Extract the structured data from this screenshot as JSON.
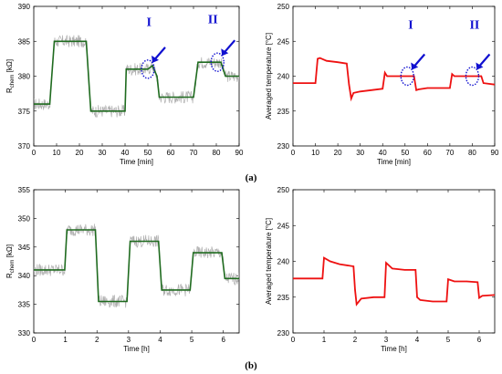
{
  "panel_labels": [
    "(a)",
    "(b)"
  ],
  "colors": {
    "resistance": "#1f6b1f",
    "temperature": "#ee1111",
    "noise": "#b0b0b0",
    "annotation": "#1010d0"
  },
  "chart_data": [
    {
      "id": "a-left",
      "type": "line",
      "title": "",
      "xlabel": "Time [min]",
      "ylabel": "R",
      "ylabel_sub": "chem",
      "ylabel_unit": " [kΩ]",
      "xlim": [
        0,
        90
      ],
      "ylim": [
        370,
        390
      ],
      "xticks": [
        0,
        10,
        20,
        30,
        40,
        50,
        60,
        70,
        80,
        90
      ],
      "yticks": [
        370,
        375,
        380,
        385,
        390
      ],
      "grid": false,
      "noise_band": 0.9,
      "series": [
        {
          "x": [
            0,
            7,
            9,
            23,
            25,
            32,
            34,
            40,
            40.5,
            50,
            52,
            54,
            55,
            62,
            64,
            70,
            72,
            82,
            84,
            90
          ],
          "y": [
            376,
            376,
            385,
            385,
            375,
            375,
            375,
            375,
            381,
            381,
            381.5,
            380,
            377,
            377,
            377,
            377,
            382,
            382,
            380,
            380
          ]
        }
      ],
      "annotations": [
        {
          "label": "I",
          "x": 50,
          "y": 381,
          "label_x": 50.5,
          "label_y": 387.2
        },
        {
          "label": "II",
          "x": 80.5,
          "y": 382,
          "label_x": 78.5,
          "label_y": 387.6
        }
      ]
    },
    {
      "id": "a-right",
      "type": "line",
      "title": "",
      "xlabel": "Time [min]",
      "ylabel": "Averaged temperature [°C]",
      "xlim": [
        0,
        90
      ],
      "ylim": [
        230,
        250
      ],
      "xticks": [
        0,
        10,
        20,
        30,
        40,
        50,
        60,
        70,
        80,
        90
      ],
      "yticks": [
        230,
        235,
        240,
        245,
        250
      ],
      "grid": false,
      "series": [
        {
          "x": [
            0,
            10,
            11,
            12,
            15,
            20,
            24,
            25,
            26,
            27,
            30,
            35,
            40,
            41,
            42,
            50,
            54,
            55,
            56,
            60,
            70,
            71,
            72,
            80,
            84,
            85,
            90
          ],
          "y": [
            239,
            239,
            242.5,
            242.6,
            242.2,
            242,
            241.8,
            238.8,
            236.8,
            237.6,
            237.8,
            238,
            238.2,
            240.5,
            240,
            240,
            240,
            238,
            238.1,
            238.3,
            238.3,
            240.3,
            240,
            240,
            240,
            239,
            238.8
          ]
        }
      ],
      "annotations": [
        {
          "label": "I",
          "x": 51,
          "y": 240,
          "label_x": 52.5,
          "label_y": 246.8
        },
        {
          "label": "II",
          "x": 80,
          "y": 240,
          "label_x": 81,
          "label_y": 246.8
        }
      ]
    },
    {
      "id": "b-left",
      "type": "line",
      "title": "",
      "xlabel": "Time [h]",
      "ylabel": "R",
      "ylabel_sub": "chem",
      "ylabel_unit": " [kΩ]",
      "xlim": [
        0,
        6.5
      ],
      "ylim": [
        330,
        355
      ],
      "xticks": [
        0,
        1,
        2,
        3,
        4,
        5,
        6
      ],
      "yticks": [
        330,
        335,
        340,
        345,
        350,
        355
      ],
      "grid": false,
      "noise_band": 1.1,
      "series": [
        {
          "x": [
            0,
            0.98,
            1.05,
            1.95,
            2.05,
            2.95,
            3.05,
            3.95,
            4.05,
            4.95,
            5.05,
            5.95,
            6.05,
            6.5
          ],
          "y": [
            341,
            341,
            348,
            348,
            335.5,
            335.5,
            346,
            346,
            337.5,
            337.5,
            344,
            344,
            339.5,
            339.5
          ]
        }
      ]
    },
    {
      "id": "b-right",
      "type": "line",
      "title": "",
      "xlabel": "Time [h]",
      "ylabel": "Averaged temperature [°C]",
      "xlim": [
        0,
        6.5
      ],
      "ylim": [
        230,
        250
      ],
      "xticks": [
        0,
        1,
        2,
        3,
        4,
        5,
        6
      ],
      "yticks": [
        230,
        235,
        240,
        245,
        250
      ],
      "grid": false,
      "series": [
        {
          "x": [
            0,
            0.95,
            1.0,
            1.2,
            1.5,
            1.95,
            2.0,
            2.05,
            2.2,
            2.6,
            2.95,
            3.0,
            3.2,
            3.6,
            3.95,
            4.0,
            4.1,
            4.5,
            4.95,
            5.0,
            5.2,
            5.6,
            5.95,
            6.0,
            6.1,
            6.5
          ],
          "y": [
            237.6,
            237.6,
            240.5,
            240,
            239.6,
            239.3,
            236,
            234,
            234.8,
            235,
            235,
            239.8,
            239,
            238.8,
            238.8,
            235,
            234.6,
            234.4,
            234.4,
            237.5,
            237.2,
            237.2,
            237.1,
            234.9,
            235.2,
            235.3
          ]
        }
      ]
    }
  ]
}
